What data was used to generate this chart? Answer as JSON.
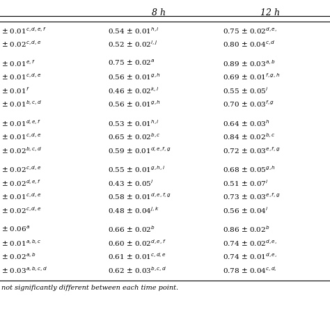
{
  "header_8h": "8 h",
  "header_12h": "12 h",
  "bg_color": "#ffffff",
  "footnote": "not significantly different between each time point.",
  "font_size": 7.5,
  "header_font_size": 9.0,
  "figsize": [
    4.74,
    4.74
  ],
  "dpi": 100
}
